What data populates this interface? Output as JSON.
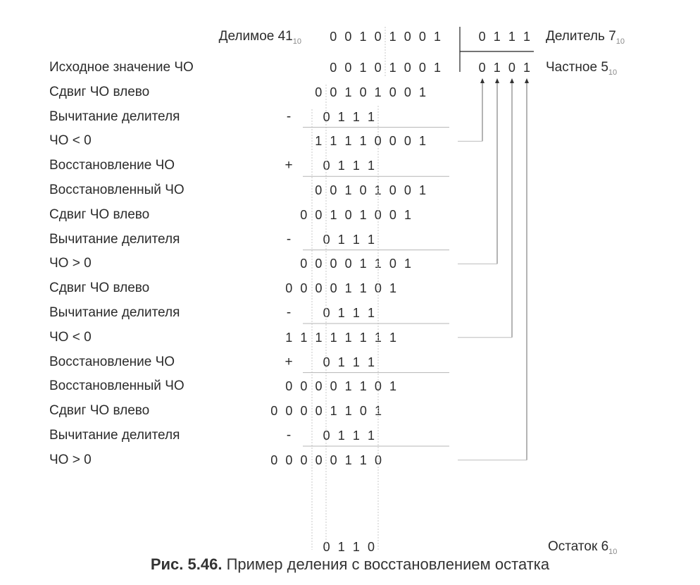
{
  "dividend_label": "Делимое 41",
  "dividend_sub": "10",
  "divisor_label": "Делитель 7",
  "divisor_sub": "10",
  "quotient_label": "Частное 5",
  "quotient_sub": "10",
  "remainder_label": "Остаток 6",
  "remainder_sub": "10",
  "dividend_bits": "00101001",
  "divisor_bits": "0111",
  "quotient_bits": "0101",
  "remainder_bits": "0110",
  "caption_prefix": "Рис. 5.46.",
  "caption_text": " Пример деления с восстановлением остатка",
  "rows": [
    {
      "label": "Исходное значение ЧО",
      "bits": "00101001",
      "sign": ""
    },
    {
      "label": "Сдвиг ЧО влево",
      "bits": "00101001",
      "sign": ""
    },
    {
      "label": "Вычитание делителя",
      "bits": "0111",
      "sign": "-"
    },
    {
      "label": "ЧО < 0",
      "bits": "11110001",
      "sign": ""
    },
    {
      "label": "Восстановление ЧО",
      "bits": "0111",
      "sign": "+"
    },
    {
      "label": "Восстановленный ЧО",
      "bits": "00101001",
      "sign": ""
    },
    {
      "label": "Сдвиг ЧО влево",
      "bits": "00101001",
      "sign": ""
    },
    {
      "label": "Вычитание делителя",
      "bits": "0111",
      "sign": "-"
    },
    {
      "label": "ЧО > 0",
      "bits": "00001101",
      "sign": ""
    },
    {
      "label": "Сдвиг ЧО влево",
      "bits": "00001101",
      "sign": ""
    },
    {
      "label": "Вычитание делителя",
      "bits": "0111",
      "sign": "-"
    },
    {
      "label": "ЧО < 0",
      "bits": "11111111",
      "sign": ""
    },
    {
      "label": "Восстановление ЧО",
      "bits": "0111",
      "sign": "+"
    },
    {
      "label": "Восстановленный ЧО",
      "bits": "00001101",
      "sign": ""
    },
    {
      "label": "Сдвиг ЧО влево",
      "bits": "00001101",
      "sign": ""
    },
    {
      "label": "Вычитание делителя",
      "bits": "0111",
      "sign": "-"
    },
    {
      "label": "ЧО > 0",
      "bits": "00000110",
      "sign": ""
    }
  ]
}
